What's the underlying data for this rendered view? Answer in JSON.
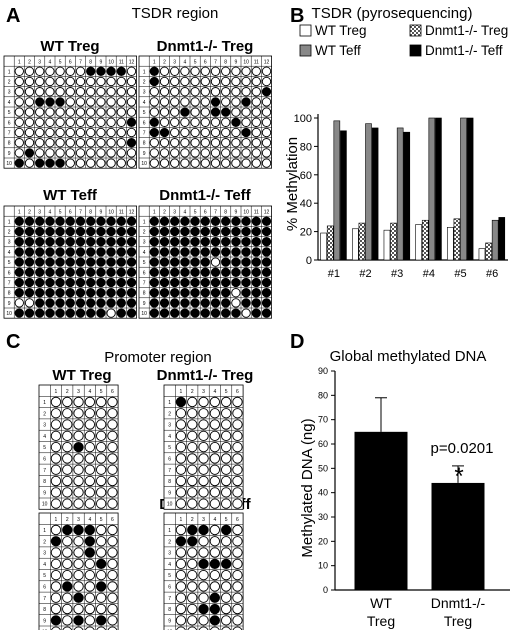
{
  "panels": {
    "A": {
      "letter": "A",
      "title": "TSDR region",
      "cols": [
        "1",
        "2",
        "3",
        "4",
        "5",
        "6",
        "7",
        "8",
        "9",
        "10",
        "11",
        "12"
      ],
      "rows": [
        "1",
        "2",
        "3",
        "4",
        "5",
        "6",
        "7",
        "8",
        "9",
        "10"
      ],
      "grids": [
        {
          "label": "WT Treg",
          "methylated": [
            [
              1,
              8
            ],
            [
              1,
              9
            ],
            [
              1,
              10
            ],
            [
              1,
              11
            ],
            [
              4,
              3
            ],
            [
              4,
              4
            ],
            [
              4,
              5
            ],
            [
              6,
              12
            ],
            [
              8,
              12
            ],
            [
              9,
              2
            ],
            [
              10,
              1
            ],
            [
              10,
              3
            ],
            [
              10,
              4
            ],
            [
              10,
              5
            ]
          ]
        },
        {
          "label": "Dnmt1-/- Treg",
          "methylated": [
            [
              1,
              1
            ],
            [
              2,
              1
            ],
            [
              3,
              12
            ],
            [
              4,
              7
            ],
            [
              4,
              10
            ],
            [
              5,
              4
            ],
            [
              5,
              7
            ],
            [
              5,
              8
            ],
            [
              6,
              1
            ],
            [
              6,
              9
            ],
            [
              7,
              1
            ],
            [
              7,
              2
            ],
            [
              7,
              10
            ]
          ]
        },
        {
          "label": "WT Teff",
          "methylated": "all",
          "unmethylated": [
            [
              9,
              1
            ],
            [
              9,
              2
            ],
            [
              10,
              10
            ]
          ]
        },
        {
          "label": "Dnmt1-/- Teff",
          "methylated": "all",
          "unmethylated": [
            [
              5,
              7
            ],
            [
              8,
              9
            ],
            [
              9,
              9
            ],
            [
              10,
              10
            ]
          ]
        }
      ]
    },
    "C": {
      "letter": "C",
      "title": "Promoter region",
      "cols": [
        "1",
        "2",
        "3",
        "4",
        "5",
        "6"
      ],
      "rows": [
        "1",
        "2",
        "3",
        "4",
        "5",
        "6",
        "7",
        "8",
        "9",
        "10"
      ],
      "grids": [
        {
          "label": "WT Treg",
          "methylated": [
            [
              5,
              3
            ]
          ]
        },
        {
          "label": "Dnmt1-/- Treg",
          "methylated": [
            [
              1,
              1
            ]
          ]
        },
        {
          "label": "WT Teff",
          "methylated": [
            [
              1,
              2
            ],
            [
              1,
              3
            ],
            [
              1,
              4
            ],
            [
              2,
              1
            ],
            [
              2,
              4
            ],
            [
              3,
              4
            ],
            [
              4,
              5
            ],
            [
              6,
              2
            ],
            [
              6,
              5
            ],
            [
              7,
              3
            ],
            [
              9,
              1
            ],
            [
              9,
              3
            ],
            [
              9,
              5
            ]
          ]
        },
        {
          "label": "Dnmt1-/- Teff",
          "methylated": [
            [
              1,
              2
            ],
            [
              1,
              3
            ],
            [
              1,
              5
            ],
            [
              2,
              1
            ],
            [
              2,
              2
            ],
            [
              4,
              3
            ],
            [
              4,
              4
            ],
            [
              4,
              5
            ],
            [
              7,
              4
            ],
            [
              8,
              3
            ],
            [
              8,
              4
            ],
            [
              9,
              4
            ]
          ]
        }
      ]
    },
    "B": {
      "letter": "B",
      "title": "TSDR (pyrosequencing)"
    },
    "D": {
      "letter": "D",
      "title": "Global methylated DNA"
    }
  },
  "chart_data": [
    {
      "type": "bar",
      "title": "TSDR (pyrosequencing)",
      "ylabel": "% Methylation",
      "xlabel": "",
      "categories": [
        "#1",
        "#2",
        "#3",
        "#4",
        "#5",
        "#6"
      ],
      "ylim": [
        0,
        100
      ],
      "yticks": [
        "0",
        "20",
        "40",
        "60",
        "80",
        "100"
      ],
      "legend_position": "top",
      "series": [
        {
          "name": "WT Treg",
          "pattern": "white",
          "values": [
            19,
            22,
            21,
            25,
            23,
            8
          ]
        },
        {
          "name": "Dnmt1-/- Treg",
          "pattern": "checker",
          "values": [
            24,
            26,
            26,
            28,
            29,
            12
          ]
        },
        {
          "name": "WT Teff",
          "pattern": "gray",
          "values": [
            98,
            96,
            93,
            100,
            100,
            28
          ]
        },
        {
          "name": "Dnmt1-/- Teff",
          "pattern": "black",
          "values": [
            91,
            93,
            90,
            100,
            100,
            30
          ]
        }
      ]
    },
    {
      "type": "bar",
      "title": "Global methylated DNA",
      "ylabel": "Methylated DNA (ng)",
      "xlabel": "",
      "categories": [
        "WT\nTreg",
        "Dnmt1-/-\nTreg"
      ],
      "values": [
        65,
        44
      ],
      "errors": [
        14,
        7
      ],
      "ylim": [
        0,
        90
      ],
      "yticks": [
        "0",
        "10",
        "20",
        "30",
        "40",
        "50",
        "60",
        "70",
        "80",
        "90"
      ],
      "annotations": {
        "pvalue": "p=0.0201",
        "significance": "*"
      },
      "colors": {
        "bar": "#000000"
      }
    }
  ]
}
